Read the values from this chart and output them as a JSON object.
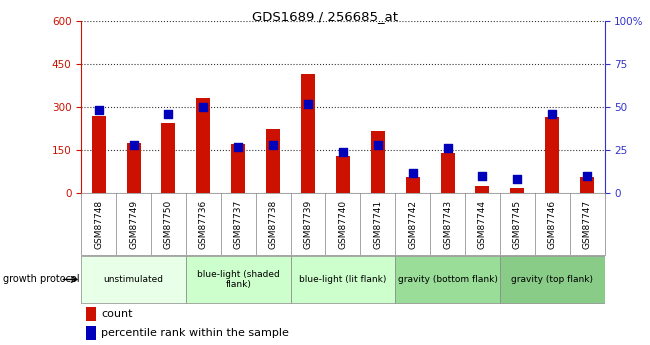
{
  "title": "GDS1689 / 256685_at",
  "samples": [
    "GSM87748",
    "GSM87749",
    "GSM87750",
    "GSM87736",
    "GSM87737",
    "GSM87738",
    "GSM87739",
    "GSM87740",
    "GSM87741",
    "GSM87742",
    "GSM87743",
    "GSM87744",
    "GSM87745",
    "GSM87746",
    "GSM87747"
  ],
  "count_values": [
    270,
    175,
    245,
    330,
    170,
    225,
    415,
    130,
    215,
    55,
    140,
    25,
    18,
    265,
    55
  ],
  "percentile_values": [
    48,
    28,
    46,
    50,
    27,
    28,
    52,
    24,
    28,
    12,
    26,
    10,
    8,
    46,
    10
  ],
  "groups": [
    {
      "label": "unstimulated",
      "start": 0,
      "end": 3
    },
    {
      "label": "blue-light (shaded\nflank)",
      "start": 3,
      "end": 6
    },
    {
      "label": "blue-light (lit flank)",
      "start": 6,
      "end": 9
    },
    {
      "label": "gravity (bottom flank)",
      "start": 9,
      "end": 12
    },
    {
      "label": "gravity (top flank)",
      "start": 12,
      "end": 15
    }
  ],
  "group_colors": [
    "#e8ffe8",
    "#ccffcc",
    "#ccffcc",
    "#99dd99",
    "#88cc88"
  ],
  "bar_color": "#cc1100",
  "dot_color": "#0000bb",
  "ylim_left": [
    0,
    600
  ],
  "ylim_right": [
    0,
    100
  ],
  "yticks_left": [
    0,
    150,
    300,
    450,
    600
  ],
  "yticks_right": [
    0,
    25,
    50,
    75,
    100
  ],
  "ylabel_left_color": "#cc1100",
  "ylabel_right_color": "#3333cc",
  "plot_bg_color": "#ffffff",
  "xticklabel_bg": "#d0d0d0",
  "bar_width": 0.4,
  "dot_size": 6
}
